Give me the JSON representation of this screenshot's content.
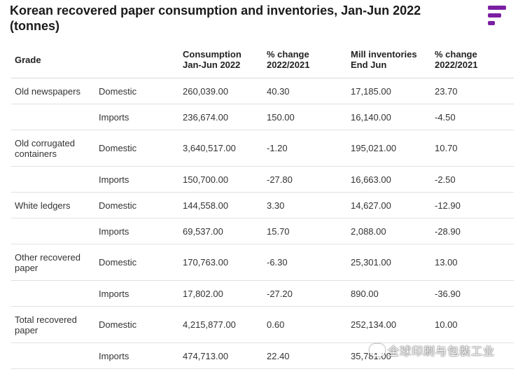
{
  "header": {
    "title": "Korean recovered paper consumption and inventories, Jan-Jun 2022 (tonnes)",
    "logo_icon": "f-logo-icon",
    "brand_color": "#7b1fa2"
  },
  "table": {
    "headers": {
      "grade": "Grade",
      "consumption_l1": "Consumption",
      "consumption_l2": "Jan-Jun 2022",
      "change1_l1": "% change",
      "change1_l2": "2022/2021",
      "inventories_l1": "Mill inventories",
      "inventories_l2": "End Jun",
      "change2_l1": "% change",
      "change2_l2": "2022/2021"
    },
    "rows": [
      {
        "grade": "Old newspapers",
        "source": "Domestic",
        "consumption": "260,039.00",
        "change1": "40.30",
        "inventories": "17,185.00",
        "change2": "23.70"
      },
      {
        "grade": "",
        "source": "Imports",
        "consumption": "236,674.00",
        "change1": "150.00",
        "inventories": "16,140.00",
        "change2": "-4.50"
      },
      {
        "grade": "Old corrugated containers",
        "source": "Domestic",
        "consumption": "3,640,517.00",
        "change1": "-1.20",
        "inventories": "195,021.00",
        "change2": "10.70"
      },
      {
        "grade": "",
        "source": "Imports",
        "consumption": "150,700.00",
        "change1": "-27.80",
        "inventories": "16,663.00",
        "change2": "-2.50"
      },
      {
        "grade": "White ledgers",
        "source": "Domestic",
        "consumption": "144,558.00",
        "change1": "3.30",
        "inventories": "14,627.00",
        "change2": "-12.90"
      },
      {
        "grade": "",
        "source": "Imports",
        "consumption": "69,537.00",
        "change1": "15.70",
        "inventories": "2,088.00",
        "change2": "-28.90"
      },
      {
        "grade": "Other recovered paper",
        "source": "Domestic",
        "consumption": "170,763.00",
        "change1": "-6.30",
        "inventories": "25,301.00",
        "change2": "13.00"
      },
      {
        "grade": "",
        "source": "Imports",
        "consumption": "17,802.00",
        "change1": "-27.20",
        "inventories": "890.00",
        "change2": "-36.90"
      },
      {
        "grade": "Total recovered paper",
        "source": "Domestic",
        "consumption": "4,215,877.00",
        "change1": "0.60",
        "inventories": "252,134.00",
        "change2": "10.00"
      },
      {
        "grade": "",
        "source": "Imports",
        "consumption": "474,713.00",
        "change1": "22.40",
        "inventories": "35,781.00",
        "change2": ""
      }
    ]
  },
  "watermark": {
    "text": "全球印刷与包装工业",
    "icon": "wechat-icon"
  }
}
